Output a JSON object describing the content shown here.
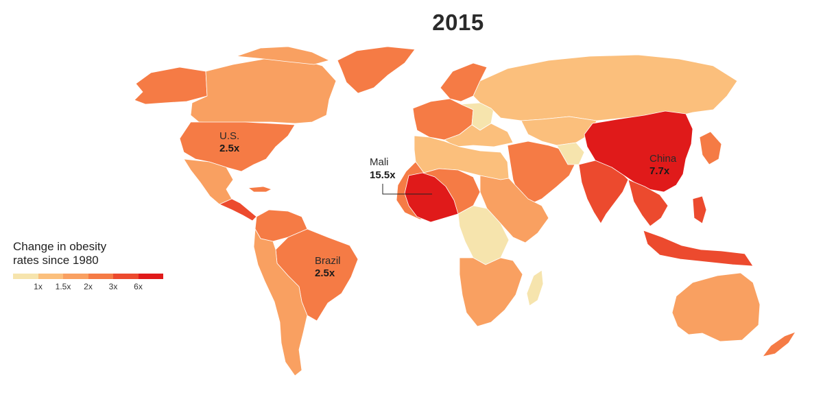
{
  "title": "2015",
  "legend": {
    "title": "Change in obesity rates since 1980",
    "scale": [
      {
        "color": "#f6e4ad"
      },
      {
        "color": "#fbbf7c"
      },
      {
        "color": "#f9a061"
      },
      {
        "color": "#f57b45"
      },
      {
        "color": "#ec4a2e"
      },
      {
        "color": "#e01a1a"
      }
    ],
    "ticks": [
      "1x",
      "1.5x",
      "2x",
      "3x",
      "6x"
    ]
  },
  "callouts": {
    "us": {
      "name": "U.S.",
      "value": "2.5x"
    },
    "mali": {
      "name": "Mali",
      "value": "15.5x"
    },
    "brazil": {
      "name": "Brazil",
      "value": "2.5x"
    },
    "china": {
      "name": "China",
      "value": "7.7x"
    }
  },
  "map_data": {
    "type": "choropleth",
    "regions": [
      {
        "name": "Alaska / Western Canada",
        "class": "3x"
      },
      {
        "name": "Canada",
        "class": "2x"
      },
      {
        "name": "Greenland",
        "class": "3x"
      },
      {
        "name": "United States",
        "class": "3x",
        "value": "2.5x"
      },
      {
        "name": "Mexico",
        "class": "2x"
      },
      {
        "name": "Central America",
        "class": "3x"
      },
      {
        "name": "Brazil",
        "class": "3x",
        "value": "2.5x"
      },
      {
        "name": "Mali",
        "class": "6x",
        "value": "15.5x"
      },
      {
        "name": "China",
        "class": "6x",
        "value": "7.7x"
      },
      {
        "name": "Russia",
        "class": "1.5x"
      },
      {
        "name": "India",
        "class": "3x+"
      },
      {
        "name": "Australia",
        "class": "2x"
      }
    ]
  }
}
